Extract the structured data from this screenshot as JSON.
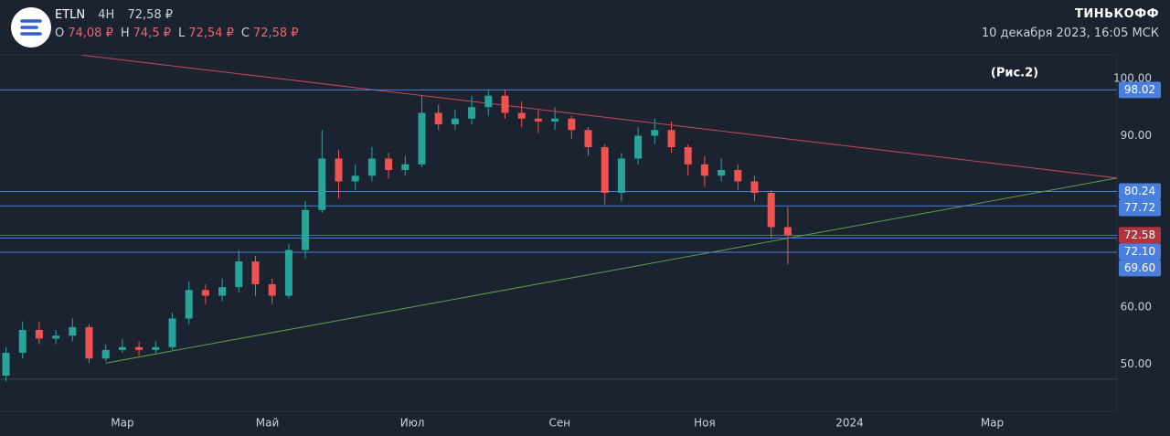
{
  "header": {
    "ticker": "ETLN",
    "interval": "4H",
    "price": "72,58 ₽",
    "ohlc": [
      {
        "label": "O",
        "value": "74,08 ₽"
      },
      {
        "label": "H",
        "value": "74,5 ₽"
      },
      {
        "label": "L",
        "value": "72,54 ₽"
      },
      {
        "label": "C",
        "value": "72,58 ₽"
      }
    ],
    "brand": "ТИНЬКОФФ",
    "datetime": "10 декабря 2023, 16:05 МСК"
  },
  "chart_data": {
    "type": "candlestick",
    "annotation": "(Рис.2)",
    "x": [
      10,
      17,
      24,
      31,
      38,
      45,
      52,
      59,
      66,
      73,
      80,
      87,
      94,
      101,
      108,
      115,
      122,
      129,
      136,
      143,
      150,
      157,
      164,
      171,
      178,
      185,
      192,
      199,
      206,
      213,
      220,
      227,
      234,
      241,
      248,
      255,
      262,
      269,
      276,
      283,
      290,
      297,
      304,
      311,
      318,
      325,
      332,
      339
    ],
    "open": [
      48,
      52,
      56,
      54.5,
      55,
      56.5,
      51,
      52.5,
      53,
      52.5,
      53,
      58,
      63,
      62,
      63.5,
      68,
      64,
      62,
      70,
      77,
      86,
      82,
      83,
      86,
      84,
      85,
      94,
      92,
      93,
      95,
      97,
      94,
      93,
      92.5,
      93,
      91,
      88,
      80,
      86,
      90,
      91,
      88,
      85,
      83,
      84,
      82,
      80,
      74
    ],
    "high": [
      53,
      57.5,
      57.5,
      56,
      58,
      57,
      53.5,
      54.5,
      54,
      54,
      59,
      64.5,
      64,
      65,
      70,
      69,
      65,
      71,
      78.5,
      91,
      87.5,
      85,
      88,
      87,
      86.5,
      97,
      95.5,
      94.5,
      97,
      98.02,
      98,
      96,
      94.5,
      95,
      93.5,
      91.5,
      88.5,
      87,
      91.5,
      93,
      92.5,
      88.5,
      86.5,
      86,
      85,
      83,
      80.5,
      77.5
    ],
    "low": [
      47,
      51,
      53.5,
      53.5,
      54,
      50.2,
      50.5,
      52,
      51.5,
      52,
      52.5,
      57,
      60.5,
      61,
      62.5,
      62,
      60.5,
      61.5,
      68.5,
      76.5,
      79,
      80.5,
      82,
      82.5,
      83,
      84.5,
      91,
      91,
      92,
      93.5,
      93,
      91.5,
      90.5,
      91,
      89.5,
      86.5,
      78,
      78.5,
      85,
      88.5,
      87,
      83,
      81,
      82,
      80.5,
      78.5,
      72,
      67.5
    ],
    "close": [
      52,
      56,
      54.5,
      55,
      56.5,
      51,
      52.5,
      53,
      52.5,
      53,
      58,
      63,
      62,
      63.5,
      68,
      64,
      62,
      70,
      77,
      86,
      82,
      83,
      86,
      84,
      85,
      94,
      92,
      93,
      95,
      97,
      94,
      93,
      92.5,
      93,
      91,
      88,
      80,
      86,
      90,
      91,
      88,
      85,
      83,
      84,
      82,
      80,
      74,
      72.58
    ],
    "up_color": "#26a69a",
    "down_color": "#ef5350",
    "xlim": [
      7.5,
      477.5
    ],
    "xticks": [
      {
        "value": 59,
        "label": "Мар"
      },
      {
        "value": 120,
        "label": "Май"
      },
      {
        "value": 181,
        "label": "Июл"
      },
      {
        "value": 243,
        "label": "Сен"
      },
      {
        "value": 304,
        "label": "Ноя"
      },
      {
        "value": 365,
        "label": "2024"
      },
      {
        "value": 425,
        "label": "Мар"
      }
    ],
    "ylim": [
      41.76,
      104.16
    ],
    "yticks": [
      {
        "value": 100,
        "label": "100.00"
      },
      {
        "value": 90,
        "label": "90.00"
      },
      {
        "value": 60,
        "label": "60.00"
      },
      {
        "value": 50,
        "label": "50.00"
      }
    ],
    "levels": [
      98.02,
      80.24,
      77.72,
      {
        "value": 72.1,
        "label": "72.10"
      },
      {
        "value": 69.6,
        "label": "69.60"
      }
    ],
    "level_color": "#4a7fe0",
    "other_lines": [
      47.4
    ],
    "last": 72.58,
    "last_color": "#b2323d",
    "trendlines": [
      {
        "color": "#c9485a",
        "x": [
          42,
          477.5
        ],
        "y": [
          104.1,
          82.6
        ]
      },
      {
        "color": "#5e9e4a",
        "x": [
          52,
          477.5
        ],
        "y": [
          50.2,
          82.6
        ]
      }
    ]
  }
}
